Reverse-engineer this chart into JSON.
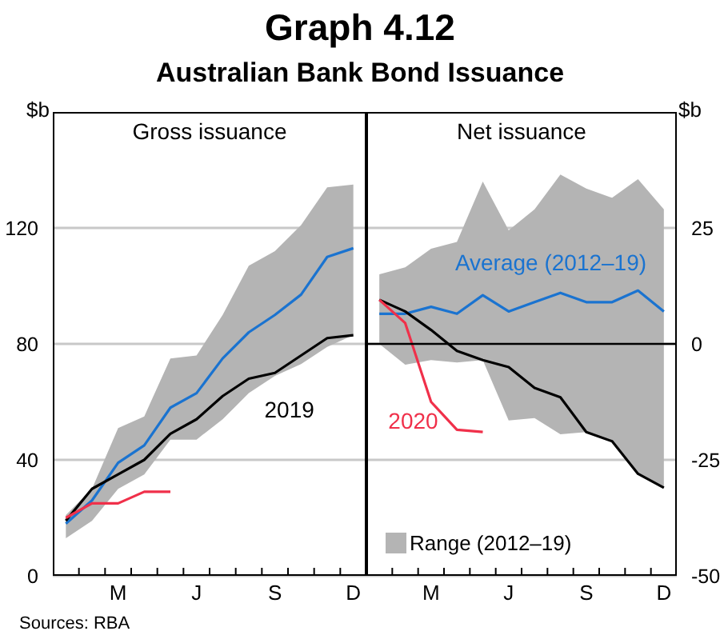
{
  "chart_data": [
    {
      "type": "line",
      "title": "Graph 4.12",
      "subtitle": "Australian Bank Bond Issuance",
      "annotations": [
        "Gross issuance"
      ],
      "ylabel": "$b",
      "categories": [
        null,
        null,
        "M",
        null,
        null,
        "J",
        null,
        null,
        "S",
        null,
        null,
        "D"
      ],
      "ylim": [
        0,
        160
      ],
      "yticks": [
        0,
        40,
        80,
        120
      ],
      "grid": "y",
      "series": [
        {
          "color": "#b4b4b4",
          "values": [
            null,
            null,
            null,
            null,
            null,
            null,
            null,
            null,
            null,
            null,
            null,
            null
          ],
          "lower": [
            13,
            19,
            30,
            35,
            47,
            47,
            54,
            63,
            69,
            73,
            79,
            83
          ],
          "upper": [
            21,
            30,
            51,
            55,
            75,
            76,
            90,
            107,
            112,
            121,
            134,
            135
          ]
        },
        {
          "color": "#1a73d0",
          "values": [
            18,
            26,
            39,
            45,
            58,
            63,
            75,
            84,
            90,
            97,
            110,
            113
          ]
        },
        {
          "name": "2019",
          "color": "#000000",
          "values": [
            19,
            30,
            35,
            40,
            49,
            54,
            62,
            68,
            70,
            76,
            82,
            83
          ]
        },
        {
          "color": "#f0304a",
          "values": [
            20,
            25,
            25,
            29,
            29,
            null,
            null,
            null,
            null,
            null,
            null,
            null
          ]
        }
      ]
    },
    {
      "type": "line",
      "annotations": [
        "Net issuance",
        "Sources: RBA"
      ],
      "y2label": "$b",
      "categories": [
        null,
        null,
        "M",
        null,
        null,
        "J",
        null,
        null,
        "S",
        null,
        null,
        "D"
      ],
      "y2lim": [
        -50,
        50
      ],
      "y2ticks": [
        -50,
        -25,
        0,
        25
      ],
      "grid": "y",
      "legend": "bottom left",
      "ref_lines": [
        {
          "axis": "y2",
          "value": 0,
          "color": "#000000"
        }
      ],
      "series": [
        {
          "name": "Range (2012–19)",
          "color": "#b4b4b4",
          "axis": "y2",
          "values": [
            null,
            null,
            null,
            null,
            null,
            null,
            null,
            null,
            null,
            null,
            null,
            null
          ],
          "lower": [
            0,
            -4.5,
            -3.5,
            -4,
            -3.5,
            -16.5,
            -16,
            -19.5,
            -19,
            -21,
            -28,
            -31
          ],
          "upper": [
            15,
            16.5,
            20.5,
            22,
            35,
            24.5,
            29,
            36.5,
            33.5,
            31.5,
            35.5,
            29
          ]
        },
        {
          "name": "Average (2012–19)",
          "color": "#1a73d0",
          "axis": "y2",
          "values": [
            6.5,
            6.5,
            8,
            6.5,
            10.5,
            7,
            9,
            11,
            9,
            9,
            11.5,
            7
          ]
        },
        {
          "color": "#000000",
          "axis": "y2",
          "values": [
            9.5,
            7,
            3,
            -1.5,
            -3.5,
            -5,
            -9.5,
            -11.5,
            -19,
            -21,
            -28,
            -31
          ]
        },
        {
          "name": "2020",
          "color": "#f0304a",
          "axis": "y2",
          "values": [
            9.5,
            4.5,
            -12.5,
            -18.5,
            -19,
            null,
            null,
            null,
            null,
            null,
            null,
            null
          ]
        }
      ]
    }
  ]
}
